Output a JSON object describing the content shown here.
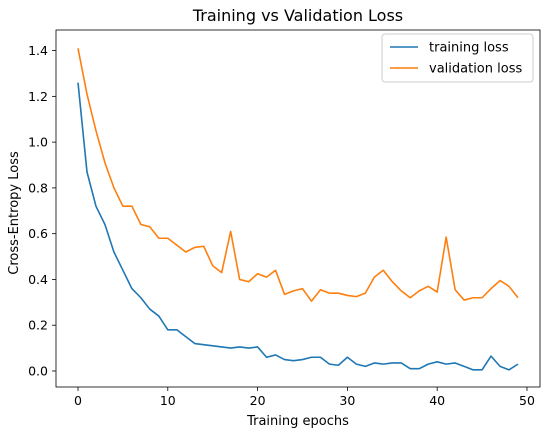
{
  "chart_data": {
    "type": "line",
    "title": "Training vs Validation Loss",
    "xlabel": "Training epochs",
    "ylabel": "Cross-Entropy Loss",
    "xlim": [
      -2.45,
      51.45
    ],
    "ylim": [
      -0.07,
      1.49
    ],
    "xticks": [
      0,
      10,
      20,
      30,
      40,
      50
    ],
    "yticks": [
      0.0,
      0.2,
      0.4,
      0.6,
      0.8,
      1.0,
      1.2,
      1.4
    ],
    "ytick_labels": [
      "0.0",
      "0.2",
      "0.4",
      "0.6",
      "0.8",
      "1.0",
      "1.2",
      "1.4"
    ],
    "grid": false,
    "legend_position": "top-right",
    "x": [
      0,
      1,
      2,
      3,
      4,
      5,
      6,
      7,
      8,
      9,
      10,
      11,
      12,
      13,
      14,
      15,
      16,
      17,
      18,
      19,
      20,
      21,
      22,
      23,
      24,
      25,
      26,
      27,
      28,
      29,
      30,
      31,
      32,
      33,
      34,
      35,
      36,
      37,
      38,
      39,
      40,
      41,
      42,
      43,
      44,
      45,
      46,
      47,
      48,
      49
    ],
    "series": [
      {
        "name": "training loss",
        "color": "#1f77b4",
        "values": [
          1.26,
          0.87,
          0.72,
          0.64,
          0.52,
          0.44,
          0.36,
          0.32,
          0.27,
          0.24,
          0.18,
          0.18,
          0.15,
          0.12,
          0.115,
          0.11,
          0.105,
          0.1,
          0.105,
          0.1,
          0.105,
          0.06,
          0.07,
          0.05,
          0.045,
          0.05,
          0.06,
          0.06,
          0.03,
          0.025,
          0.06,
          0.03,
          0.02,
          0.035,
          0.03,
          0.035,
          0.035,
          0.01,
          0.01,
          0.03,
          0.04,
          0.03,
          0.035,
          0.02,
          0.005,
          0.005,
          0.065,
          0.02,
          0.005,
          0.03
        ]
      },
      {
        "name": "validation loss",
        "color": "#ff7f0e",
        "values": [
          1.41,
          1.21,
          1.05,
          0.91,
          0.8,
          0.72,
          0.72,
          0.64,
          0.63,
          0.58,
          0.58,
          0.55,
          0.52,
          0.54,
          0.545,
          0.46,
          0.43,
          0.61,
          0.4,
          0.39,
          0.425,
          0.41,
          0.44,
          0.335,
          0.35,
          0.36,
          0.305,
          0.355,
          0.34,
          0.34,
          0.33,
          0.325,
          0.34,
          0.41,
          0.44,
          0.39,
          0.35,
          0.32,
          0.35,
          0.37,
          0.345,
          0.585,
          0.355,
          0.31,
          0.32,
          0.32,
          0.36,
          0.395,
          0.37,
          0.32
        ]
      }
    ]
  }
}
